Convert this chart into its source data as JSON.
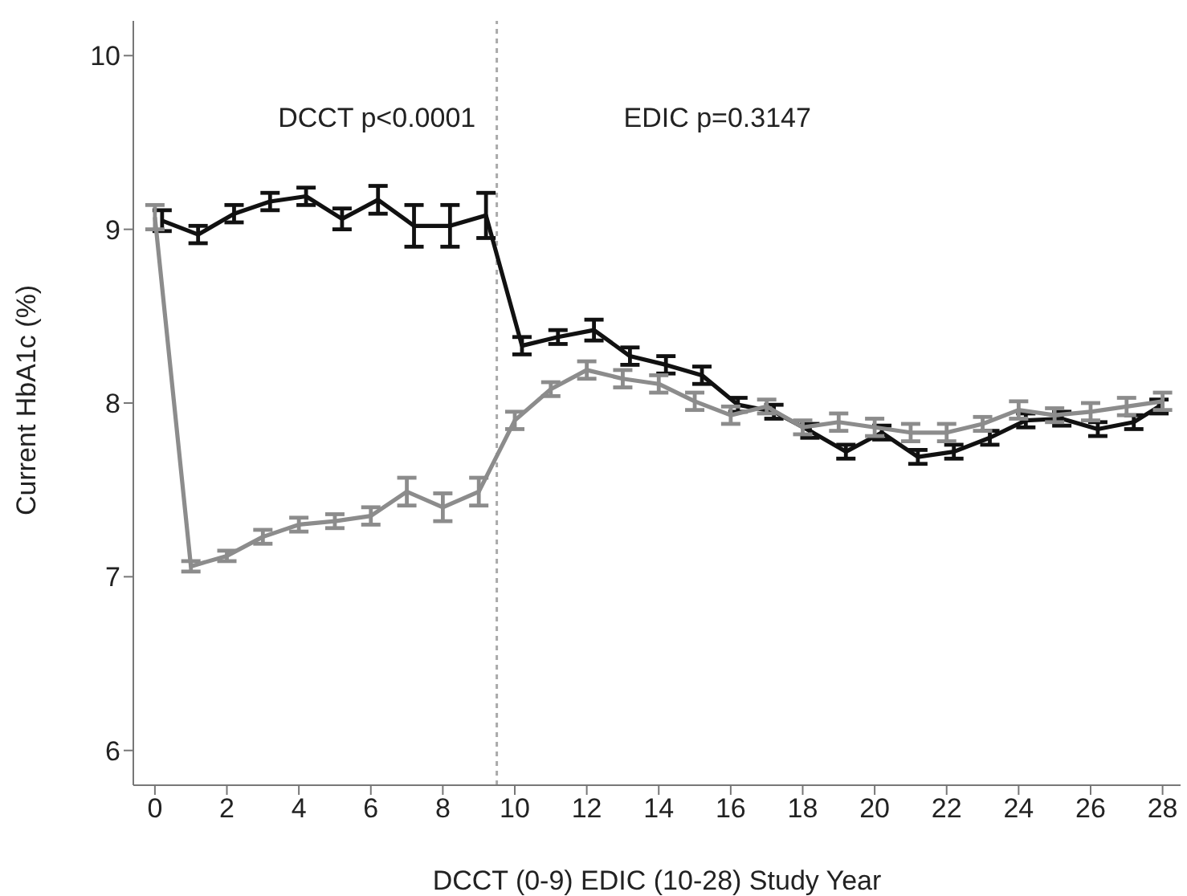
{
  "chart_data": {
    "type": "line",
    "xlabel": "DCCT (0-9) EDIC (10-28) Study Year",
    "ylabel": "Current HbA1c (%)",
    "xlim": [
      -0.6,
      28.5
    ],
    "ylim": [
      5.8,
      10.2
    ],
    "xticks": [
      0,
      2,
      4,
      6,
      8,
      10,
      12,
      14,
      16,
      18,
      20,
      22,
      24,
      26,
      28
    ],
    "yticks": [
      6,
      7,
      8,
      9,
      10
    ],
    "grid": false,
    "legend": false,
    "marker": "none",
    "line_style": "solid",
    "annotations": [
      "DCCT p<0.0001",
      "EDIC p=0.3147"
    ],
    "ref_lines": [
      {
        "axis": "x",
        "value": 9.5,
        "color": "#aaaaaa",
        "line_style": "dotted"
      }
    ],
    "series": [
      {
        "color": "#111111",
        "x": [
          0.2,
          1.2,
          2.2,
          3.2,
          4.2,
          5.2,
          6.2,
          7.2,
          8.2,
          9.2,
          10.2,
          11.2,
          12.2,
          13.2,
          14.2,
          15.2,
          16.2,
          17.2,
          18.2,
          19.2,
          20.2,
          21.2,
          22.2,
          23.2,
          24.2,
          25.2,
          26.2,
          27.2,
          27.9
        ],
        "values": [
          9.05,
          8.97,
          9.09,
          9.16,
          9.19,
          9.06,
          9.17,
          9.02,
          9.02,
          9.08,
          8.33,
          8.38,
          8.42,
          8.27,
          8.22,
          8.16,
          7.99,
          7.95,
          7.84,
          7.72,
          7.83,
          7.69,
          7.72,
          7.8,
          7.9,
          7.91,
          7.85,
          7.89,
          7.98
        ],
        "errors": [
          0.06,
          0.05,
          0.05,
          0.05,
          0.05,
          0.06,
          0.08,
          0.12,
          0.12,
          0.13,
          0.05,
          0.04,
          0.06,
          0.05,
          0.05,
          0.05,
          0.04,
          0.04,
          0.04,
          0.04,
          0.04,
          0.04,
          0.04,
          0.04,
          0.04,
          0.04,
          0.04,
          0.04,
          0.04
        ]
      },
      {
        "color": "#8c8c8c",
        "x": [
          0,
          1,
          2,
          3,
          4,
          5,
          6,
          7,
          8,
          9,
          10,
          11,
          12,
          13,
          14,
          15,
          16,
          17,
          18,
          19,
          20,
          21,
          22,
          23,
          24,
          25,
          26,
          27,
          28
        ],
        "values": [
          9.07,
          7.06,
          7.12,
          7.23,
          7.3,
          7.32,
          7.35,
          7.49,
          7.4,
          7.49,
          7.9,
          8.08,
          8.19,
          8.14,
          8.11,
          8.01,
          7.93,
          7.98,
          7.86,
          7.89,
          7.86,
          7.83,
          7.83,
          7.88,
          7.96,
          7.93,
          7.95,
          7.98,
          8.01
        ],
        "errors": [
          0.07,
          0.03,
          0.03,
          0.04,
          0.04,
          0.04,
          0.05,
          0.08,
          0.08,
          0.08,
          0.05,
          0.04,
          0.05,
          0.05,
          0.05,
          0.05,
          0.05,
          0.04,
          0.04,
          0.05,
          0.05,
          0.05,
          0.05,
          0.04,
          0.05,
          0.04,
          0.05,
          0.05,
          0.05
        ]
      }
    ]
  }
}
